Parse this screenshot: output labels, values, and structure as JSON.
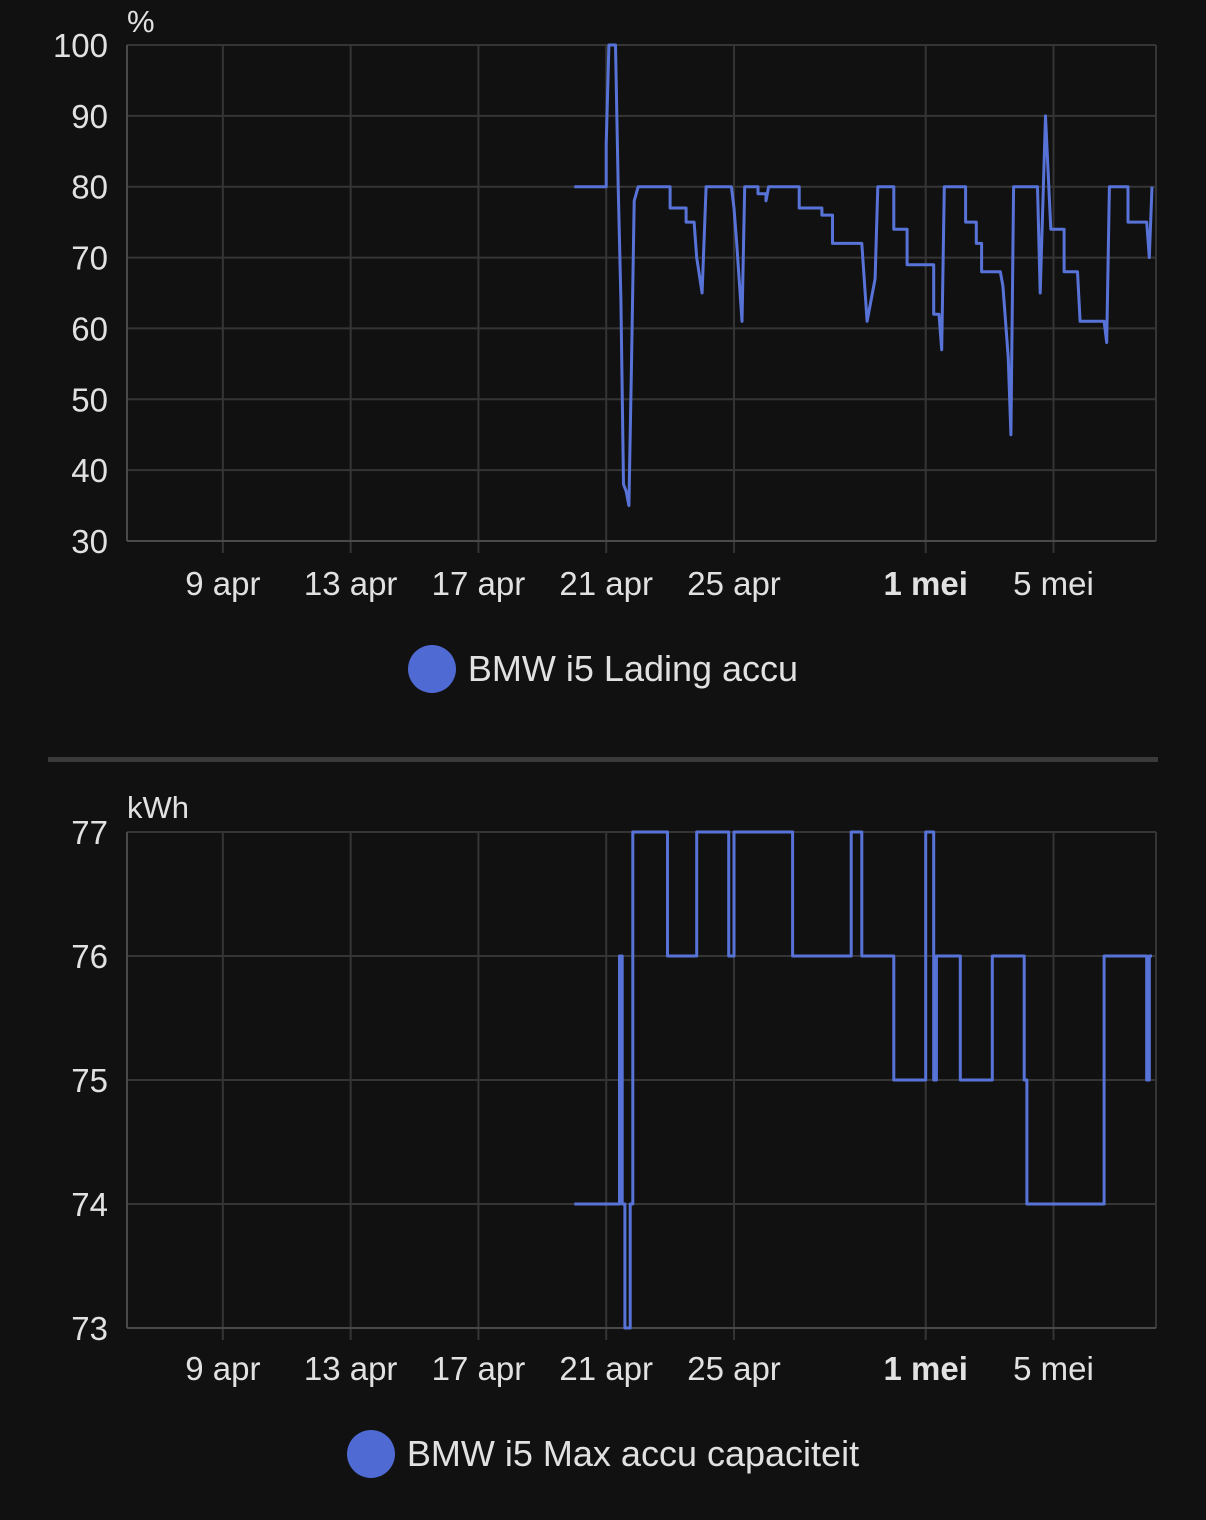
{
  "charts": [
    {
      "id": "soc",
      "unit": "%",
      "legend_label": "BMW i5 Lading accu",
      "series_color": "#5873d8",
      "y_ticks": [
        "100",
        "90",
        "80",
        "70",
        "60",
        "50",
        "40",
        "30"
      ],
      "x_ticks": [
        {
          "label": "9 apr",
          "bold": false
        },
        {
          "label": "13 apr",
          "bold": false
        },
        {
          "label": "17 apr",
          "bold": false
        },
        {
          "label": "21 apr",
          "bold": false
        },
        {
          "label": "25 apr",
          "bold": false
        },
        {
          "label": "1 mei",
          "bold": true
        },
        {
          "label": "5 mei",
          "bold": false
        }
      ]
    },
    {
      "id": "cap",
      "unit": "kWh",
      "legend_label": "BMW i5 Max accu capaciteit",
      "series_color": "#5873d8",
      "y_ticks": [
        "77",
        "76",
        "75",
        "74",
        "73"
      ],
      "x_ticks": [
        {
          "label": "9 apr",
          "bold": false
        },
        {
          "label": "13 apr",
          "bold": false
        },
        {
          "label": "17 apr",
          "bold": false
        },
        {
          "label": "21 apr",
          "bold": false
        },
        {
          "label": "25 apr",
          "bold": false
        },
        {
          "label": "1 mei",
          "bold": true
        },
        {
          "label": "5 mei",
          "bold": false
        }
      ]
    }
  ],
  "chart_data": [
    {
      "type": "line",
      "step": true,
      "xlabel": "",
      "ylabel": "%",
      "ylim": [
        30,
        100
      ],
      "x_range": [
        "2024-04-06",
        "2024-05-08"
      ],
      "grid": true,
      "legend": "bottom-center",
      "series": [
        {
          "name": "BMW i5 Lading accu",
          "points": [
            [
              "2024-04-20T00:00",
              80
            ],
            [
              "2024-04-21T00:00",
              80
            ],
            [
              "2024-04-21T00:00",
              86
            ],
            [
              "2024-04-21T02:00",
              100
            ],
            [
              "2024-04-21T07:00",
              100
            ],
            [
              "2024-04-21T09:00",
              80
            ],
            [
              "2024-04-21T11:00",
              64
            ],
            [
              "2024-04-21T13:00",
              38
            ],
            [
              "2024-04-21T15:00",
              37
            ],
            [
              "2024-04-21T17:00",
              35
            ],
            [
              "2024-04-21T19:00",
              55
            ],
            [
              "2024-04-21T21:00",
              78
            ],
            [
              "2024-04-22T00:00",
              80
            ],
            [
              "2024-04-23T00:00",
              80
            ],
            [
              "2024-04-23T00:00",
              77
            ],
            [
              "2024-04-23T12:00",
              77
            ],
            [
              "2024-04-23T12:00",
              75
            ],
            [
              "2024-04-23T18:00",
              75
            ],
            [
              "2024-04-23T20:00",
              70
            ],
            [
              "2024-04-24T00:00",
              65
            ],
            [
              "2024-04-24T03:00",
              80
            ],
            [
              "2024-04-24T22:00",
              80
            ],
            [
              "2024-04-25T00:00",
              77
            ],
            [
              "2024-04-25T02:00",
              72
            ],
            [
              "2024-04-25T06:00",
              61
            ],
            [
              "2024-04-25T08:00",
              80
            ],
            [
              "2024-04-25T18:00",
              80
            ],
            [
              "2024-04-25T18:00",
              79
            ],
            [
              "2024-04-26T00:00",
              79
            ],
            [
              "2024-04-26T00:00",
              78
            ],
            [
              "2024-04-26T02:00",
              80
            ],
            [
              "2024-04-27T01:00",
              80
            ],
            [
              "2024-04-27T01:00",
              77
            ],
            [
              "2024-04-27T18:00",
              77
            ],
            [
              "2024-04-27T18:00",
              76
            ],
            [
              "2024-04-28T02:00",
              76
            ],
            [
              "2024-04-28T02:00",
              72
            ],
            [
              "2024-04-29T00:00",
              72
            ],
            [
              "2024-04-29T04:00",
              61
            ],
            [
              "2024-04-29T10:00",
              67
            ],
            [
              "2024-04-29T12:00",
              80
            ],
            [
              "2024-04-30T00:00",
              80
            ],
            [
              "2024-04-30T00:00",
              74
            ],
            [
              "2024-04-30T10:00",
              74
            ],
            [
              "2024-04-30T10:00",
              69
            ],
            [
              "2024-05-01T06:00",
              69
            ],
            [
              "2024-05-01T06:00",
              62
            ],
            [
              "2024-05-01T10:00",
              62
            ],
            [
              "2024-05-01T12:00",
              57
            ],
            [
              "2024-05-01T14:00",
              80
            ],
            [
              "2024-05-02T06:00",
              80
            ],
            [
              "2024-05-02T06:00",
              75
            ],
            [
              "2024-05-02T14:00",
              75
            ],
            [
              "2024-05-02T14:00",
              72
            ],
            [
              "2024-05-02T18:00",
              72
            ],
            [
              "2024-05-02T18:00",
              68
            ],
            [
              "2024-05-03T08:00",
              68
            ],
            [
              "2024-05-03T10:00",
              66
            ],
            [
              "2024-05-03T14:00",
              56
            ],
            [
              "2024-05-03T16:00",
              45
            ],
            [
              "2024-05-03T18:00",
              80
            ],
            [
              "2024-05-04T12:00",
              80
            ],
            [
              "2024-05-04T14:00",
              65
            ],
            [
              "2024-05-04T18:00",
              90
            ],
            [
              "2024-05-04T22:00",
              74
            ],
            [
              "2024-05-05T08:00",
              74
            ],
            [
              "2024-05-05T08:00",
              68
            ],
            [
              "2024-05-05T18:00",
              68
            ],
            [
              "2024-05-05T20:00",
              61
            ],
            [
              "2024-05-06T14:00",
              61
            ],
            [
              "2024-05-06T16:00",
              58
            ],
            [
              "2024-05-06T18:00",
              80
            ],
            [
              "2024-05-07T08:00",
              80
            ],
            [
              "2024-05-07T08:00",
              75
            ],
            [
              "2024-05-07T22:00",
              75
            ],
            [
              "2024-05-08T00:00",
              70
            ],
            [
              "2024-05-08T02:00",
              80
            ]
          ]
        }
      ]
    },
    {
      "type": "line",
      "step": true,
      "xlabel": "",
      "ylabel": "kWh",
      "ylim": [
        73,
        77
      ],
      "x_range": [
        "2024-04-06",
        "2024-05-08"
      ],
      "grid": true,
      "legend": "bottom-center",
      "series": [
        {
          "name": "BMW i5 Max accu capaciteit",
          "points": [
            [
              "2024-04-20T00:00",
              74
            ],
            [
              "2024-04-21T10:00",
              74
            ],
            [
              "2024-04-21T10:00",
              76
            ],
            [
              "2024-04-21T12:00",
              76
            ],
            [
              "2024-04-21T12:00",
              74
            ],
            [
              "2024-04-21T14:00",
              74
            ],
            [
              "2024-04-21T14:00",
              73
            ],
            [
              "2024-04-21T18:00",
              73
            ],
            [
              "2024-04-21T18:00",
              74
            ],
            [
              "2024-04-21T20:00",
              74
            ],
            [
              "2024-04-21T20:00",
              77
            ],
            [
              "2024-04-22T22:00",
              77
            ],
            [
              "2024-04-22T22:00",
              76
            ],
            [
              "2024-04-23T20:00",
              76
            ],
            [
              "2024-04-23T20:00",
              77
            ],
            [
              "2024-04-24T20:00",
              77
            ],
            [
              "2024-04-24T20:00",
              76
            ],
            [
              "2024-04-25T00:00",
              76
            ],
            [
              "2024-04-25T00:00",
              77
            ],
            [
              "2024-04-26T20:00",
              77
            ],
            [
              "2024-04-26T20:00",
              76
            ],
            [
              "2024-04-28T16:00",
              76
            ],
            [
              "2024-04-28T16:00",
              77
            ],
            [
              "2024-04-29T00:00",
              77
            ],
            [
              "2024-04-29T00:00",
              76
            ],
            [
              "2024-04-30T00:00",
              76
            ],
            [
              "2024-04-30T00:00",
              75
            ],
            [
              "2024-05-01T00:00",
              75
            ],
            [
              "2024-05-01T00:00",
              77
            ],
            [
              "2024-05-01T06:00",
              77
            ],
            [
              "2024-05-01T06:00",
              75
            ],
            [
              "2024-05-01T08:00",
              75
            ],
            [
              "2024-05-01T08:00",
              76
            ],
            [
              "2024-05-02T02:00",
              76
            ],
            [
              "2024-05-02T02:00",
              75
            ],
            [
              "2024-05-03T02:00",
              75
            ],
            [
              "2024-05-03T02:00",
              76
            ],
            [
              "2024-05-04T02:00",
              76
            ],
            [
              "2024-05-04T02:00",
              75
            ],
            [
              "2024-05-04T04:00",
              75
            ],
            [
              "2024-05-04T04:00",
              74
            ],
            [
              "2024-05-06T14:00",
              74
            ],
            [
              "2024-05-06T14:00",
              76
            ],
            [
              "2024-05-07T22:00",
              76
            ],
            [
              "2024-05-07T22:00",
              75
            ],
            [
              "2024-05-08T00:00",
              75
            ],
            [
              "2024-05-08T00:00",
              76
            ],
            [
              "2024-05-08T02:00",
              76
            ]
          ]
        }
      ]
    }
  ]
}
